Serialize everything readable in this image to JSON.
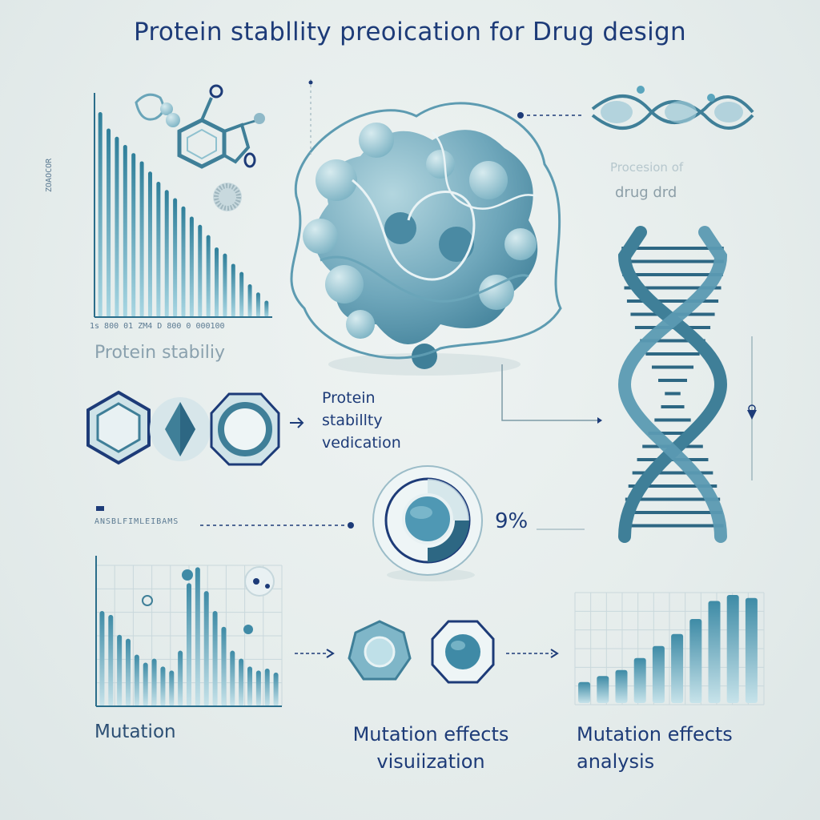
{
  "title": "Protein stabllity preoication     for Drug design",
  "labels": {
    "protein_stability": "Protein stabiliy",
    "drug_faint_1": "Procesion of",
    "drug_faint_2": "drug drd",
    "psv_1": "Protein",
    "psv_2": "stabillty",
    "psv_3": "vedication",
    "percent": "9%",
    "mutation": "Mutation",
    "mut_effects_vis_1": "Mutation effects",
    "mut_effects_vis_2": "visuiization",
    "mut_effects_ana_1": "Mutation effects",
    "mut_effects_ana_2": "analysis",
    "axis_side": "ZOAOCOR",
    "axis_ticks": "1s  800  01  ZM4  D  800  0  000100",
    "dashed_row": "ANSBLFIMLEIBAMS"
  },
  "colors": {
    "navy": "#1d3b78",
    "teal_dark": "#3f7f98",
    "teal": "#5aa5bd",
    "teal_light": "#a9d3df",
    "bg": "#e6edec"
  },
  "chart_data": [
    {
      "type": "bar",
      "title": "Protein stabiliy",
      "values": [
        100,
        92,
        88,
        84,
        80,
        76,
        71,
        66,
        62,
        58,
        54,
        49,
        45,
        40,
        34,
        31,
        26,
        22,
        16,
        12,
        8
      ],
      "ylim": [
        0,
        100
      ]
    },
    {
      "type": "bar",
      "title": "Mutation",
      "values": [
        48,
        46,
        36,
        34,
        26,
        22,
        24,
        20,
        18,
        28,
        62,
        70,
        58,
        48,
        40,
        28,
        24,
        20,
        18,
        19,
        17
      ],
      "ylim": [
        0,
        75
      ]
    },
    {
      "type": "bar",
      "title": "Mutation effects analysis",
      "values": [
        14,
        18,
        22,
        30,
        38,
        46,
        56,
        68,
        72,
        70
      ],
      "ylim": [
        0,
        80
      ]
    }
  ],
  "icons": [
    "molecule-icon",
    "protein-blob-icon",
    "dna-helix-icon",
    "hexagon-icon",
    "diamond-icon",
    "octagon-icon",
    "donut-gauge-icon",
    "arrow-icon"
  ]
}
